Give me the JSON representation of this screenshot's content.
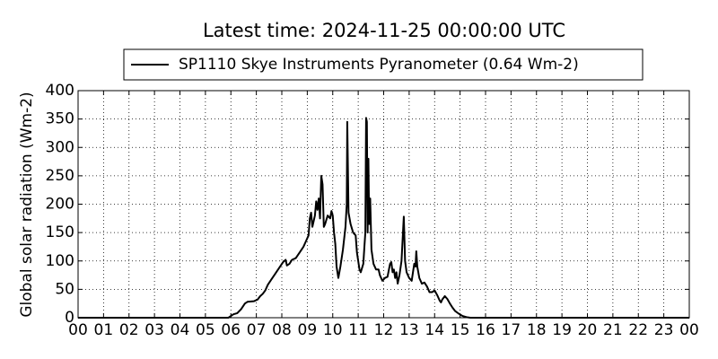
{
  "chart_data": {
    "type": "line",
    "title": "Latest time: 2024-11-25 00:00:00 UTC",
    "ylabel": "Global solar radiation (Wm-2)",
    "x": [
      0,
      5.9,
      6.0,
      6.1,
      6.25,
      6.4,
      6.55,
      6.65,
      6.9,
      7.05,
      7.15,
      7.25,
      7.35,
      7.45,
      7.6,
      7.75,
      7.9,
      8.05,
      8.15,
      8.2,
      8.3,
      8.4,
      8.55,
      8.7,
      8.85,
      8.95,
      9.05,
      9.1,
      9.15,
      9.2,
      9.3,
      9.35,
      9.4,
      9.45,
      9.5,
      9.55,
      9.6,
      9.65,
      9.7,
      9.8,
      9.9,
      9.95,
      10.0,
      10.05,
      10.1,
      10.15,
      10.22,
      10.3,
      10.4,
      10.5,
      10.55,
      10.57,
      10.62,
      10.7,
      10.8,
      10.9,
      10.95,
      11.05,
      11.1,
      11.2,
      11.25,
      11.28,
      11.31,
      11.34,
      11.37,
      11.4,
      11.43,
      11.47,
      11.52,
      11.6,
      11.7,
      11.8,
      11.85,
      11.95,
      12.05,
      12.15,
      12.25,
      12.3,
      12.35,
      12.4,
      12.45,
      12.5,
      12.55,
      12.62,
      12.7,
      12.79,
      12.84,
      12.9,
      13.0,
      13.1,
      13.2,
      13.25,
      13.28,
      13.32,
      13.4,
      13.5,
      13.6,
      13.7,
      13.8,
      13.9,
      14.0,
      14.1,
      14.2,
      14.25,
      14.3,
      14.4,
      14.5,
      14.6,
      14.7,
      14.8,
      14.95,
      15.1,
      15.25,
      15.4,
      24
    ],
    "series": [
      {
        "name": "SP1110 Skye Instruments Pyranometer (0.64 Wm-2)",
        "color": "#000000",
        "values": [
          0,
          0,
          3,
          6,
          8,
          15,
          25,
          28,
          29,
          32,
          38,
          42,
          48,
          58,
          68,
          78,
          88,
          98,
          102,
          92,
          95,
          102,
          105,
          115,
          125,
          135,
          145,
          175,
          185,
          160,
          180,
          205,
          190,
          210,
          175,
          250,
          235,
          160,
          165,
          180,
          175,
          188,
          180,
          150,
          130,
          90,
          70,
          90,
          120,
          160,
          200,
          345,
          185,
          165,
          150,
          145,
          115,
          85,
          80,
          95,
          130,
          150,
          352,
          345,
          150,
          280,
          165,
          210,
          120,
          95,
          85,
          85,
          75,
          65,
          70,
          72,
          95,
          98,
          80,
          85,
          70,
          80,
          60,
          75,
          100,
          178,
          100,
          80,
          70,
          65,
          95,
          90,
          117,
          90,
          70,
          60,
          62,
          55,
          45,
          45,
          48,
          40,
          30,
          27,
          32,
          38,
          33,
          25,
          18,
          12,
          7,
          3,
          1,
          0,
          0
        ]
      }
    ],
    "xlim": [
      0,
      24
    ],
    "xticks": [
      {
        "value": 0,
        "label": "00"
      },
      {
        "value": 1,
        "label": "01"
      },
      {
        "value": 2,
        "label": "02"
      },
      {
        "value": 3,
        "label": "03"
      },
      {
        "value": 4,
        "label": "04"
      },
      {
        "value": 5,
        "label": "05"
      },
      {
        "value": 6,
        "label": "06"
      },
      {
        "value": 7,
        "label": "07"
      },
      {
        "value": 8,
        "label": "08"
      },
      {
        "value": 9,
        "label": "09"
      },
      {
        "value": 10,
        "label": "10"
      },
      {
        "value": 11,
        "label": "11"
      },
      {
        "value": 12,
        "label": "12"
      },
      {
        "value": 13,
        "label": "13"
      },
      {
        "value": 14,
        "label": "14"
      },
      {
        "value": 15,
        "label": "15"
      },
      {
        "value": 16,
        "label": "16"
      },
      {
        "value": 17,
        "label": "17"
      },
      {
        "value": 18,
        "label": "18"
      },
      {
        "value": 19,
        "label": "19"
      },
      {
        "value": 20,
        "label": "20"
      },
      {
        "value": 21,
        "label": "21"
      },
      {
        "value": 22,
        "label": "22"
      },
      {
        "value": 23,
        "label": "23"
      },
      {
        "value": 24,
        "label": "00"
      }
    ],
    "ylim": [
      0,
      400
    ],
    "yticks": [
      0,
      50,
      100,
      150,
      200,
      250,
      300,
      350,
      400
    ],
    "grid": true,
    "legend": "upper center"
  }
}
